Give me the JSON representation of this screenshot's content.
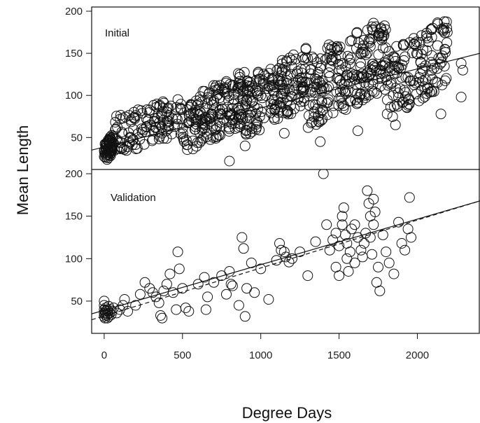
{
  "chart_data": {
    "type": "scatter",
    "xlabel": "Degree Days",
    "ylabel": "Mean Length",
    "xlim": [
      -80,
      2400
    ],
    "x_ticks": [
      0,
      500,
      1000,
      1500,
      2000
    ],
    "colors": {
      "points": "#111111",
      "lines": "#111111",
      "frame": "#111111"
    },
    "legend": "none",
    "grid": false,
    "marker": "open-circle",
    "panels": [
      {
        "label": "Initial",
        "ylim": [
          12,
          205
        ],
        "y_ticks": [
          50,
          100,
          150,
          200
        ],
        "fit_lines": [
          {
            "style": "solid",
            "from": [
              -80,
              35
            ],
            "to": [
              2400,
              150
            ]
          }
        ],
        "point_clusters": [
          {
            "x_range": [
              0,
              60
            ],
            "y_range": [
              20,
              55
            ],
            "count": 70
          },
          {
            "x_range": [
              60,
              500
            ],
            "y_range": [
              28,
              100
            ],
            "count": 120
          },
          {
            "x_range": [
              500,
              900
            ],
            "y_range": [
              30,
              130
            ],
            "count": 180
          },
          {
            "x_range": [
              900,
              1300
            ],
            "y_range": [
              50,
              160
            ],
            "count": 180
          },
          {
            "x_range": [
              1300,
              1800
            ],
            "y_range": [
              60,
              195
            ],
            "count": 220
          },
          {
            "x_range": [
              1800,
              2200
            ],
            "y_range": [
              70,
              195
            ],
            "count": 140
          }
        ],
        "points_sample": [
          [
            1380,
            45
          ],
          [
            1620,
            58
          ],
          [
            2280,
            138
          ],
          [
            2290,
            130
          ],
          [
            2280,
            98
          ],
          [
            800,
            22
          ],
          [
            1860,
            65
          ],
          [
            2150,
            78
          ],
          [
            1150,
            55
          ],
          [
            900,
            40
          ]
        ]
      },
      {
        "label": "Validation",
        "ylim": [
          12,
          205
        ],
        "y_ticks": [
          50,
          100,
          150,
          200
        ],
        "fit_lines": [
          {
            "style": "solid",
            "from": [
              -80,
              35
            ],
            "to": [
              2400,
              168
            ]
          },
          {
            "style": "dashed",
            "from": [
              -80,
              28
            ],
            "to": [
              2400,
              168
            ]
          }
        ],
        "points": [
          [
            0,
            32
          ],
          [
            0,
            36
          ],
          [
            0,
            40
          ],
          [
            0,
            45
          ],
          [
            0,
            50
          ],
          [
            5,
            30
          ],
          [
            5,
            34
          ],
          [
            8,
            38
          ],
          [
            10,
            42
          ],
          [
            10,
            36
          ],
          [
            15,
            33
          ],
          [
            18,
            40
          ],
          [
            20,
            30
          ],
          [
            22,
            35
          ],
          [
            25,
            38
          ],
          [
            28,
            44
          ],
          [
            30,
            32
          ],
          [
            35,
            36
          ],
          [
            40,
            40
          ],
          [
            45,
            34
          ],
          [
            50,
            38
          ],
          [
            60,
            42
          ],
          [
            80,
            36
          ],
          [
            100,
            40
          ],
          [
            120,
            45
          ],
          [
            150,
            38
          ],
          [
            130,
            52
          ],
          [
            200,
            45
          ],
          [
            230,
            58
          ],
          [
            260,
            72
          ],
          [
            290,
            65
          ],
          [
            310,
            60
          ],
          [
            330,
            55
          ],
          [
            350,
            48
          ],
          [
            360,
            33
          ],
          [
            370,
            30
          ],
          [
            380,
            62
          ],
          [
            400,
            70
          ],
          [
            420,
            82
          ],
          [
            440,
            60
          ],
          [
            460,
            40
          ],
          [
            470,
            108
          ],
          [
            480,
            88
          ],
          [
            500,
            65
          ],
          [
            520,
            42
          ],
          [
            540,
            38
          ],
          [
            600,
            70
          ],
          [
            640,
            78
          ],
          [
            650,
            40
          ],
          [
            660,
            55
          ],
          [
            700,
            72
          ],
          [
            750,
            80
          ],
          [
            780,
            58
          ],
          [
            800,
            85
          ],
          [
            810,
            70
          ],
          [
            820,
            68
          ],
          [
            860,
            45
          ],
          [
            880,
            125
          ],
          [
            890,
            112
          ],
          [
            900,
            32
          ],
          [
            910,
            65
          ],
          [
            940,
            95
          ],
          [
            960,
            60
          ],
          [
            1000,
            88
          ],
          [
            1050,
            52
          ],
          [
            1100,
            98
          ],
          [
            1120,
            118
          ],
          [
            1130,
            110
          ],
          [
            1150,
            108
          ],
          [
            1160,
            102
          ],
          [
            1180,
            96
          ],
          [
            1200,
            100
          ],
          [
            1250,
            108
          ],
          [
            1300,
            80
          ],
          [
            1350,
            120
          ],
          [
            1400,
            200
          ],
          [
            1420,
            140
          ],
          [
            1440,
            110
          ],
          [
            1460,
            122
          ],
          [
            1480,
            130
          ],
          [
            1480,
            90
          ],
          [
            1500,
            115
          ],
          [
            1500,
            80
          ],
          [
            1520,
            150
          ],
          [
            1520,
            140
          ],
          [
            1530,
            160
          ],
          [
            1540,
            128
          ],
          [
            1550,
            118
          ],
          [
            1550,
            100
          ],
          [
            1560,
            85
          ],
          [
            1570,
            108
          ],
          [
            1580,
            135
          ],
          [
            1600,
            95
          ],
          [
            1600,
            140
          ],
          [
            1620,
            125
          ],
          [
            1640,
            110
          ],
          [
            1650,
            102
          ],
          [
            1660,
            118
          ],
          [
            1670,
            130
          ],
          [
            1680,
            180
          ],
          [
            1690,
            165
          ],
          [
            1700,
            150
          ],
          [
            1700,
            125
          ],
          [
            1710,
            105
          ],
          [
            1720,
            170
          ],
          [
            1720,
            140
          ],
          [
            1730,
            155
          ],
          [
            1740,
            72
          ],
          [
            1750,
            90
          ],
          [
            1760,
            62
          ],
          [
            1780,
            128
          ],
          [
            1800,
            108
          ],
          [
            1820,
            95
          ],
          [
            1850,
            82
          ],
          [
            1880,
            143
          ],
          [
            1900,
            118
          ],
          [
            1920,
            110
          ],
          [
            1940,
            135
          ],
          [
            1950,
            172
          ],
          [
            1960,
            125
          ]
        ]
      }
    ]
  }
}
